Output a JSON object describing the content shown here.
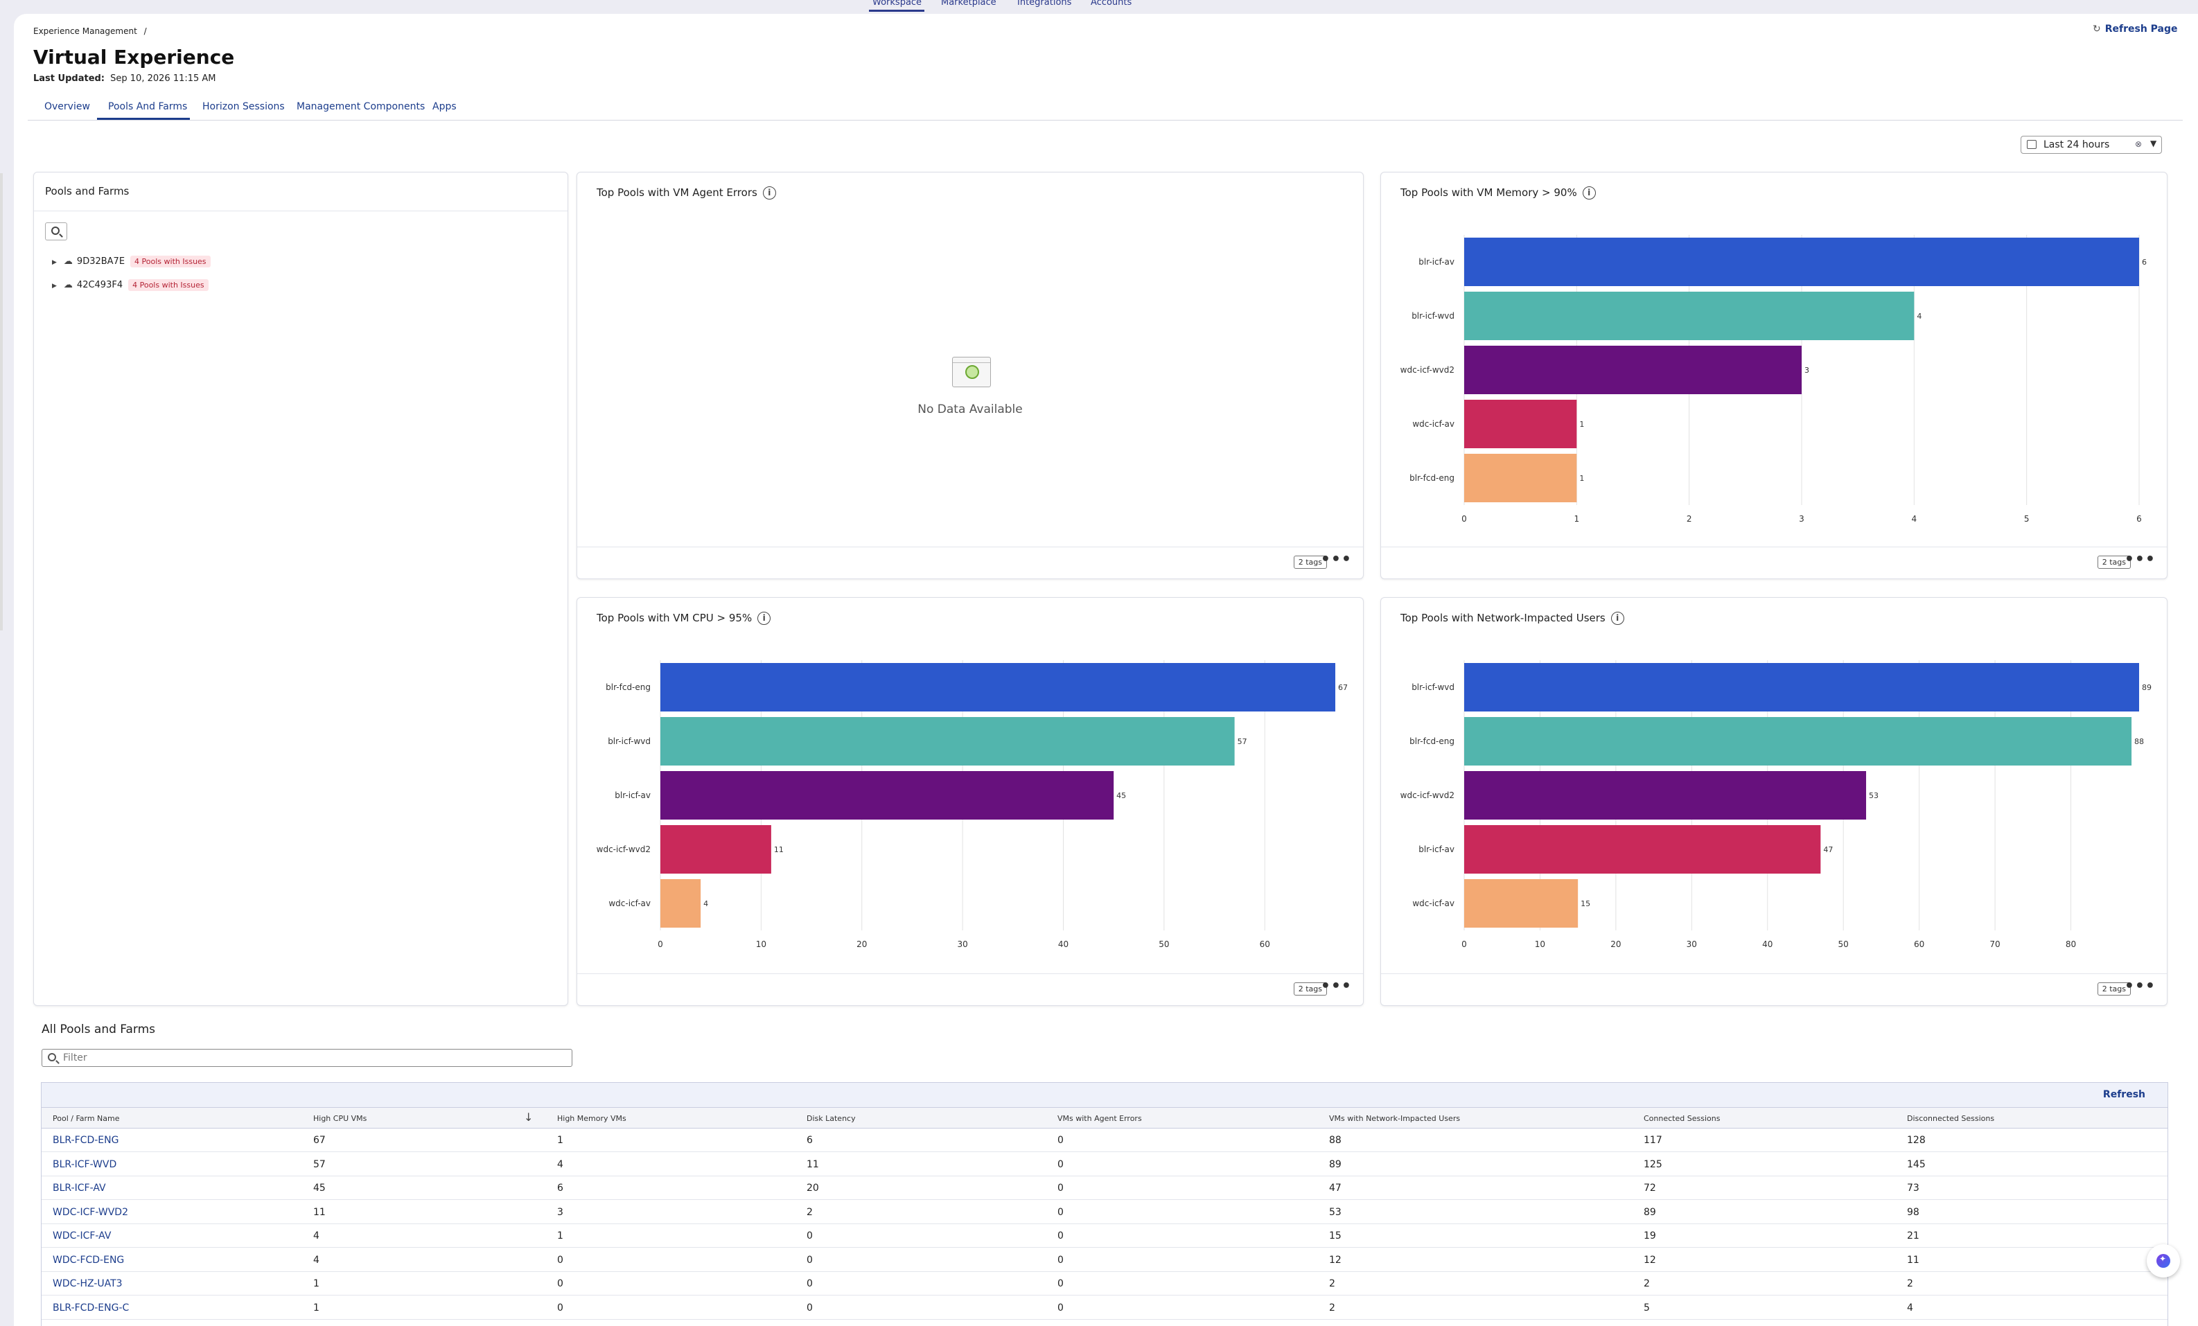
{
  "topnav": {
    "tabs": [
      "Workspace",
      "Marketplace",
      "Integrations",
      "Accounts"
    ]
  },
  "header": {
    "breadcrumb": "Experience Management",
    "breadcrumb_sep": "/",
    "title": "Virtual Experience",
    "last_updated_label": "Last Updated:",
    "last_updated_value": "Sep 10, 2026 11:15 AM",
    "refresh_page": "Refresh Page"
  },
  "tabs": [
    "Overview",
    "Pools And Farms",
    "Horizon Sessions",
    "Management Components",
    "Apps"
  ],
  "time_range": {
    "value": "Last 24 hours"
  },
  "pools_panel": {
    "title": "Pools and Farms",
    "items": [
      {
        "name": "9D32BA7E",
        "badge": "4 Pools with Issues"
      },
      {
        "name": "42C493F4",
        "badge": "4 Pools with Issues"
      }
    ]
  },
  "agent_errors_card": {
    "title": "Top Pools with VM Agent Errors",
    "no_data": "No Data Available",
    "tags": "2 tags"
  },
  "memory_card": {
    "title": "Top Pools with VM Memory > 90%",
    "tags": "2 tags"
  },
  "cpu_card": {
    "title": "Top Pools with VM CPU > 95%",
    "tags": "2 tags"
  },
  "network_card": {
    "title": "Top Pools with Network-Impacted Users",
    "tags": "2 tags"
  },
  "chart_data": [
    {
      "type": "bar",
      "orientation": "horizontal",
      "title": "Top Pools with VM Memory > 90%",
      "categories": [
        "blr-icf-av",
        "blr-icf-wvd",
        "wdc-icf-wvd2",
        "wdc-icf-av",
        "blr-fcd-eng"
      ],
      "values": [
        6,
        4,
        3,
        1,
        1
      ],
      "xticks": [
        0,
        1,
        2,
        3,
        4,
        5,
        6
      ],
      "xlim": [
        0,
        6
      ],
      "grid": true,
      "colors": [
        "#2c58cc",
        "#52b5ad",
        "#67117d",
        "#c9295a",
        "#f3a973"
      ]
    },
    {
      "type": "bar",
      "orientation": "horizontal",
      "title": "Top Pools with VM CPU > 95%",
      "categories": [
        "blr-fcd-eng",
        "blr-icf-wvd",
        "blr-icf-av",
        "wdc-icf-wvd2",
        "wdc-icf-av"
      ],
      "values": [
        67,
        57,
        45,
        11,
        4
      ],
      "xticks": [
        0,
        10,
        20,
        30,
        40,
        50,
        60
      ],
      "xlim": [
        0,
        67
      ],
      "grid": true,
      "colors": [
        "#2c58cc",
        "#52b5ad",
        "#67117d",
        "#c9295a",
        "#f3a973"
      ]
    },
    {
      "type": "bar",
      "orientation": "horizontal",
      "title": "Top Pools with Network-Impacted Users",
      "categories": [
        "blr-icf-wvd",
        "blr-fcd-eng",
        "wdc-icf-wvd2",
        "blr-icf-av",
        "wdc-icf-av"
      ],
      "values": [
        89,
        88,
        53,
        47,
        15
      ],
      "xticks": [
        0,
        10,
        20,
        30,
        40,
        50,
        60,
        70,
        80
      ],
      "xlim": [
        0,
        89
      ],
      "grid": true,
      "colors": [
        "#2c58cc",
        "#52b5ad",
        "#67117d",
        "#c9295a",
        "#f3a973"
      ]
    }
  ],
  "all_pools": {
    "title": "All Pools and Farms",
    "filter_placeholder": "Filter",
    "refresh": "Refresh",
    "columns": [
      "Pool / Farm Name",
      "High CPU VMs",
      "High Memory VMs",
      "Disk Latency",
      "VMs with Agent Errors",
      "VMs with Network-Impacted Users",
      "Connected Sessions",
      "Disconnected Sessions"
    ],
    "rows": [
      [
        "BLR-FCD-ENG",
        "67",
        "1",
        "6",
        "0",
        "88",
        "117",
        "128"
      ],
      [
        "BLR-ICF-WVD",
        "57",
        "4",
        "11",
        "0",
        "89",
        "125",
        "145"
      ],
      [
        "BLR-ICF-AV",
        "45",
        "6",
        "20",
        "0",
        "47",
        "72",
        "73"
      ],
      [
        "WDC-ICF-WVD2",
        "11",
        "3",
        "2",
        "0",
        "53",
        "89",
        "98"
      ],
      [
        "WDC-ICF-AV",
        "4",
        "1",
        "0",
        "0",
        "15",
        "19",
        "21"
      ],
      [
        "WDC-FCD-ENG",
        "4",
        "0",
        "0",
        "0",
        "12",
        "12",
        "11"
      ],
      [
        "WDC-HZ-UAT3",
        "1",
        "0",
        "0",
        "0",
        "2",
        "2",
        "2"
      ],
      [
        "BLR-FCD-ENG-C",
        "1",
        "0",
        "0",
        "0",
        "2",
        "5",
        "4"
      ]
    ]
  }
}
